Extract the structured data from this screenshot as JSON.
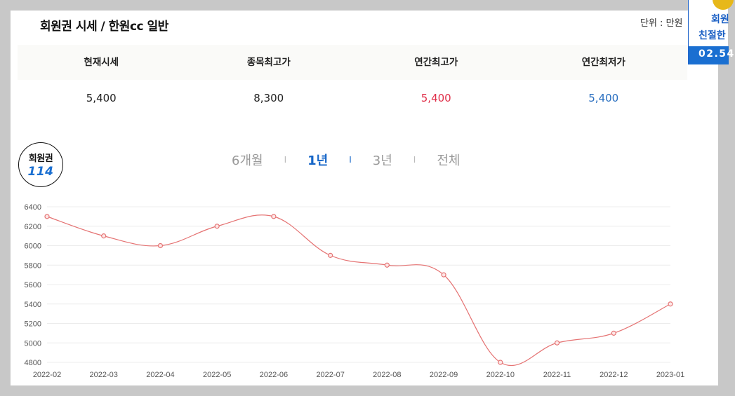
{
  "header": {
    "title": "회원권 시세 / 한원cc 일반",
    "unit": "단위 : 만원"
  },
  "price_table": {
    "headers": [
      "현재시세",
      "종목최고가",
      "연간최고가",
      "연간최저가"
    ],
    "values": [
      "5,400",
      "8,300",
      "5,400",
      "5,400"
    ]
  },
  "badge": {
    "line1": "회원권",
    "line2": "114"
  },
  "period_tabs": {
    "items": [
      "6개월",
      "1년",
      "3년",
      "전체"
    ],
    "separator": "I",
    "active": "1년"
  },
  "ad": {
    "line1": "회원",
    "line2": "친절한",
    "line3": "02.54"
  },
  "colors": {
    "line": "#e57373",
    "active_tab": "#1666c8",
    "high": "#e0304a",
    "low": "#2a6fc0"
  },
  "chart_data": {
    "type": "line",
    "categories": [
      "2022-02",
      "2022-03",
      "2022-04",
      "2022-05",
      "2022-06",
      "2022-07",
      "2022-08",
      "2022-09",
      "2022-10",
      "2022-11",
      "2022-12",
      "2023-01"
    ],
    "values": [
      6300,
      6100,
      6000,
      6200,
      6300,
      5900,
      5800,
      5700,
      4800,
      5000,
      5100,
      5400
    ],
    "yticks": [
      4800,
      5000,
      5200,
      5400,
      5600,
      5800,
      6000,
      6200,
      6400
    ],
    "ylim": [
      4800,
      6400
    ],
    "grid": true,
    "legend": "none"
  }
}
